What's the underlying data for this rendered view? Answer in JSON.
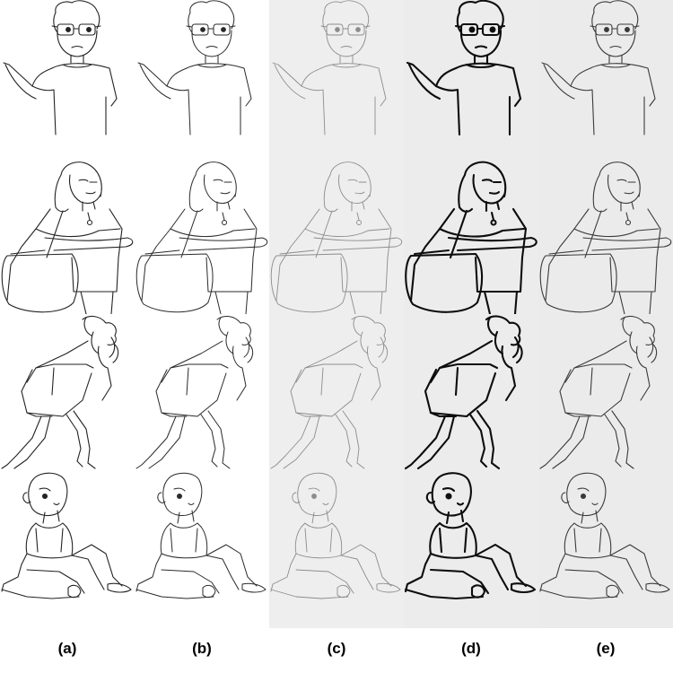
{
  "columns": [
    {
      "label": "(a)",
      "background": "#ffffff",
      "stroke": "#222222",
      "stroke_weight": 1.1
    },
    {
      "label": "(b)",
      "background": "#ffffff",
      "stroke": "#2a2a2a",
      "stroke_weight": 1.0
    },
    {
      "label": "(c)",
      "background": "#eeeeee",
      "stroke": "#8c8c8c",
      "stroke_weight": 0.9
    },
    {
      "label": "(d)",
      "background": "#ececec",
      "stroke": "#0d0d0d",
      "stroke_weight": 2.1
    },
    {
      "label": "(e)",
      "background": "#ebebeb",
      "stroke": "#3a3a3a",
      "stroke_weight": 1.1
    }
  ],
  "rows": [
    {
      "subject": "boy-with-glasses-waving"
    },
    {
      "subject": "woman-with-shoulder-bag"
    },
    {
      "subject": "girl-bending-forward"
    },
    {
      "subject": "child-sitting"
    }
  ]
}
